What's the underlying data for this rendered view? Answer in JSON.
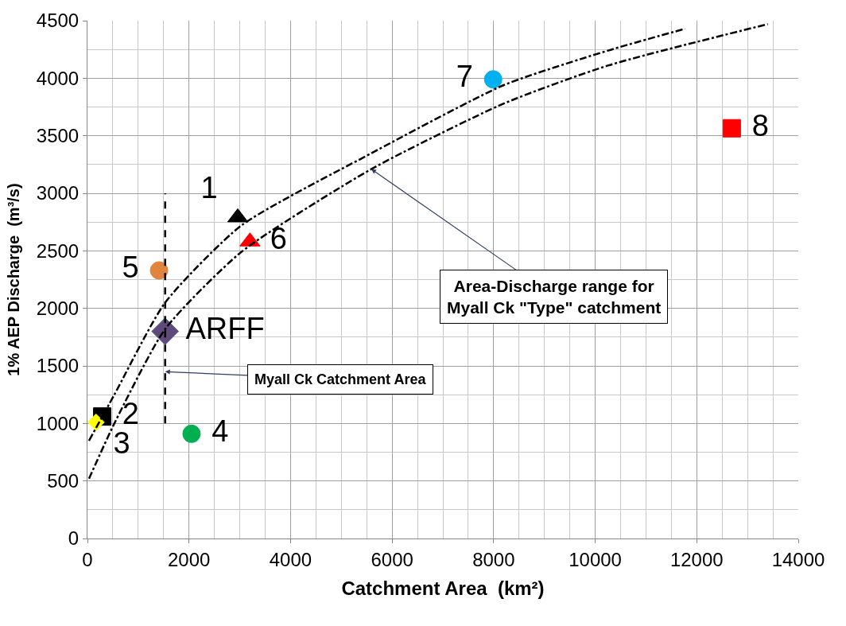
{
  "chart_data": {
    "type": "scatter",
    "xlabel": "Catchment Area  (km²)",
    "ylabel": "1% AEP Discharge  (m³/s)",
    "xlim": [
      0,
      14000
    ],
    "xticks": [
      0,
      2000,
      4000,
      6000,
      8000,
      10000,
      12000,
      14000
    ],
    "ylim": [
      0,
      4500
    ],
    "yticks": [
      0,
      500,
      1000,
      1500,
      2000,
      2500,
      3000,
      3500,
      4000,
      4500
    ],
    "grid": true,
    "series": [
      {
        "name": "1",
        "marker": "triangle",
        "color": "#000000",
        "x": [
          2960
        ],
        "values": [
          2790
        ]
      },
      {
        "name": "2",
        "marker": "square",
        "color": "#000000",
        "x": [
          290
        ],
        "values": [
          1060
        ]
      },
      {
        "name": "3",
        "marker": "diamond",
        "color": "#ffff00",
        "x": [
          170
        ],
        "values": [
          1010
        ]
      },
      {
        "name": "4",
        "marker": "circle",
        "color": "#00b050",
        "x": [
          2050
        ],
        "values": [
          910
        ]
      },
      {
        "name": "5",
        "marker": "circle",
        "color": "#e0843e",
        "x": [
          1410
        ],
        "values": [
          2330
        ]
      },
      {
        "name": "6",
        "marker": "triangle",
        "color": "#ff0000",
        "x": [
          3200
        ],
        "values": [
          2580
        ]
      },
      {
        "name": "7",
        "marker": "circle",
        "color": "#00b0f0",
        "x": [
          7990
        ],
        "values": [
          3990
        ]
      },
      {
        "name": "8",
        "marker": "square",
        "color": "#ff0000",
        "x": [
          12690
        ],
        "values": [
          3565
        ]
      },
      {
        "name": "ARFF",
        "marker": "diamond",
        "color": "#604a7b",
        "x": [
          1530
        ],
        "values": [
          1800
        ]
      },
      {
        "type": "line",
        "line_style": "dashed",
        "color": "#000000",
        "x": [
          1530,
          1530
        ],
        "values": [
          1000,
          3000
        ]
      },
      {
        "type": "line",
        "line_style": "dashdot",
        "color": "#000000",
        "x": [
          30,
          530,
          1530,
          3030,
          5600,
          8200,
          10250,
          11770
        ],
        "values": [
          850,
          1250,
          2050,
          2720,
          3350,
          3940,
          4240,
          4430
        ]
      },
      {
        "type": "line",
        "line_style": "dashdot",
        "color": "#000000",
        "x": [
          30,
          530,
          1530,
          3030,
          5590,
          8200,
          10250,
          13400
        ],
        "values": [
          520,
          1000,
          1820,
          2490,
          3210,
          3780,
          4110,
          4470
        ]
      }
    ],
    "annotations": [
      {
        "text": "Myall Ck Catchment Area",
        "x": 1530,
        "y": 1450
      },
      {
        "text": "Area-Discharge range for\nMyall Ck \"Type\" catchment",
        "x": 5590,
        "y": 3210
      }
    ]
  }
}
